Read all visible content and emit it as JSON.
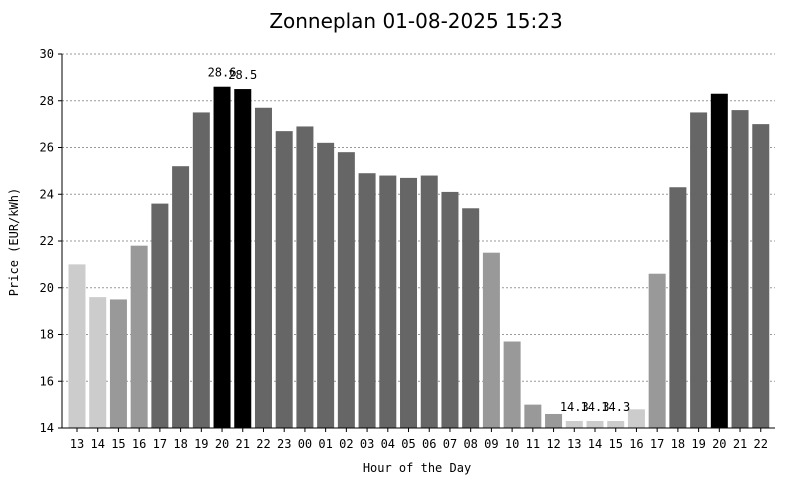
{
  "chart_data": {
    "type": "bar",
    "title": "Zonneplan 01-08-2025 15:23",
    "xlabel": "Hour of the Day",
    "ylabel": "Price (EUR/kWh)",
    "ylim": [
      14,
      30
    ],
    "yticks": [
      14,
      16,
      18,
      20,
      22,
      24,
      26,
      28,
      30
    ],
    "grid": true,
    "categories": [
      "13",
      "14",
      "15",
      "16",
      "17",
      "18",
      "19",
      "20",
      "21",
      "22",
      "23",
      "00",
      "01",
      "02",
      "03",
      "04",
      "05",
      "06",
      "07",
      "08",
      "09",
      "10",
      "11",
      "12",
      "13",
      "14",
      "15",
      "16",
      "17",
      "18",
      "19",
      "20",
      "21",
      "22"
    ],
    "values": [
      21.0,
      19.6,
      19.5,
      21.8,
      23.6,
      25.2,
      27.5,
      28.6,
      28.5,
      27.7,
      26.7,
      26.9,
      26.2,
      25.8,
      24.9,
      24.8,
      24.7,
      24.8,
      24.1,
      23.4,
      21.5,
      17.7,
      15.0,
      14.6,
      14.3,
      14.3,
      14.3,
      14.8,
      20.6,
      24.3,
      27.5,
      28.3,
      27.6,
      27.0
    ],
    "colors": [
      "#cccccc",
      "#cccccc",
      "#999999",
      "#999999",
      "#666666",
      "#666666",
      "#666666",
      "#000000",
      "#000000",
      "#666666",
      "#666666",
      "#666666",
      "#666666",
      "#666666",
      "#666666",
      "#666666",
      "#666666",
      "#666666",
      "#666666",
      "#666666",
      "#999999",
      "#999999",
      "#999999",
      "#999999",
      "#cccccc",
      "#cccccc",
      "#cccccc",
      "#cccccc",
      "#999999",
      "#666666",
      "#666666",
      "#000000",
      "#666666",
      "#666666"
    ],
    "data_labels": [
      {
        "index": 7,
        "text": "28.6"
      },
      {
        "index": 8,
        "text": "28.5"
      },
      {
        "index": 24,
        "text": "14.3"
      },
      {
        "index": 25,
        "text": "14.3"
      },
      {
        "index": 26,
        "text": "14.3"
      }
    ]
  }
}
